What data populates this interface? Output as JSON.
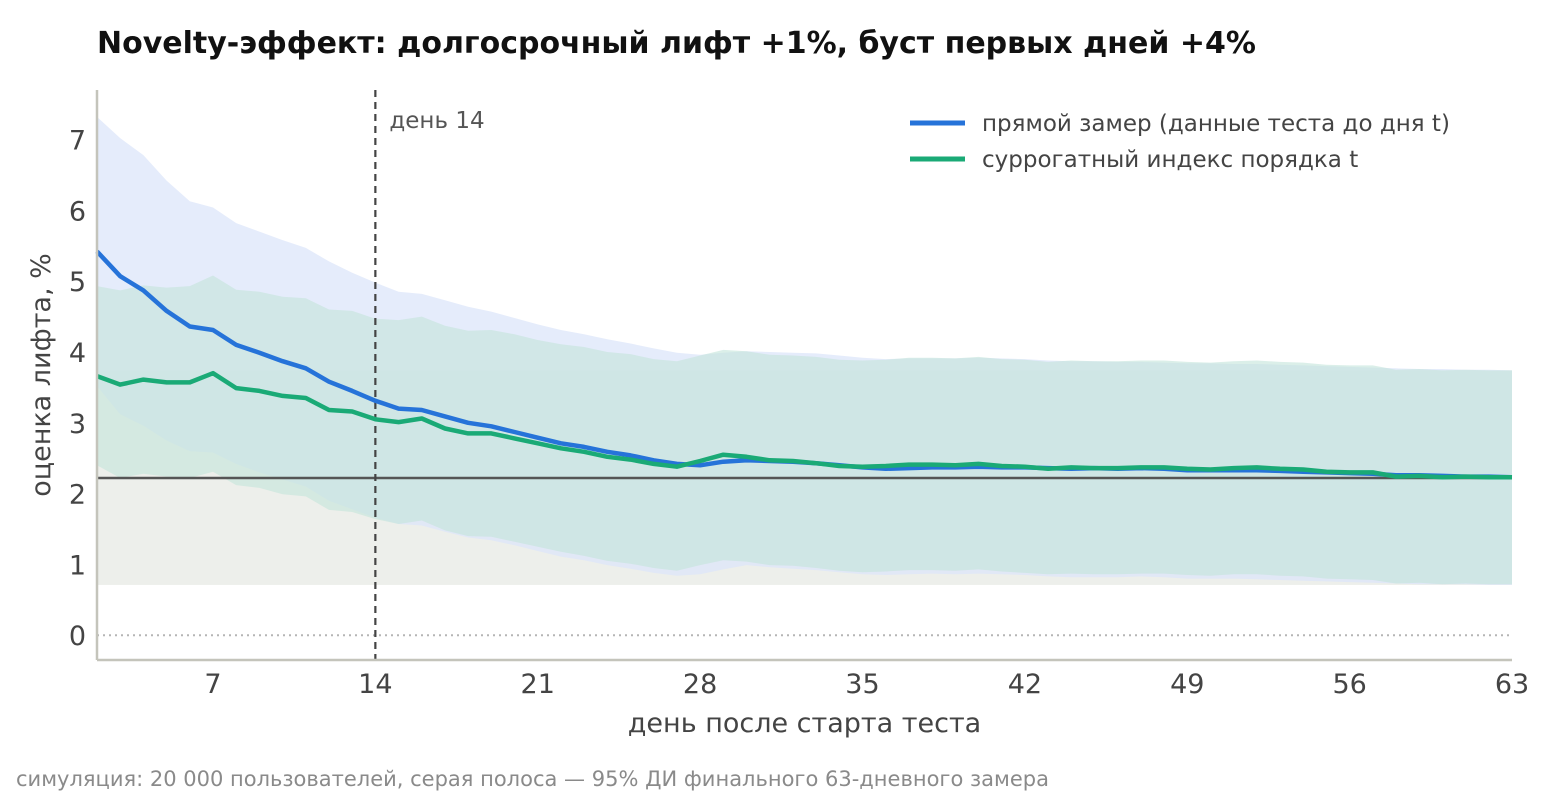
{
  "chart_data": {
    "type": "line",
    "title": "Novelty-эффект: долгосрочный лифт +1%, буст первых дней +4%",
    "xlabel": "день после старта теста",
    "ylabel": "оценка лифта, %",
    "caption": "симуляция: 20 000 пользователей, серая полоса — 95% ДИ финального 63-дневного замера",
    "xlim": [
      2,
      63
    ],
    "ylim": [
      -0.35,
      7.7
    ],
    "xticks": [
      "7",
      "14",
      "21",
      "28",
      "35",
      "42",
      "49",
      "56",
      "63"
    ],
    "xtick_values": [
      7,
      14,
      21,
      28,
      35,
      42,
      49,
      56,
      63
    ],
    "yticks": [
      "0",
      "1",
      "2",
      "3",
      "4",
      "5",
      "6",
      "7"
    ],
    "ytick_values": [
      0,
      1,
      2,
      3,
      4,
      5,
      6,
      7
    ],
    "grid": false,
    "legend_position": "top-right",
    "reference_line": {
      "value": 2.22,
      "color": "#555555"
    },
    "zero_line": {
      "value": 0,
      "style": "dotted"
    },
    "vline": {
      "x": 14,
      "label": "день 14",
      "style": "dashed"
    },
    "final_ci_band": {
      "low": 0.71,
      "high": 3.74,
      "color": "#b8bfb0"
    },
    "x": [
      2,
      3,
      4,
      5,
      6,
      7,
      8,
      9,
      10,
      11,
      12,
      13,
      14,
      15,
      16,
      17,
      18,
      19,
      20,
      21,
      22,
      23,
      24,
      25,
      26,
      27,
      28,
      29,
      30,
      31,
      32,
      33,
      34,
      35,
      36,
      37,
      38,
      39,
      40,
      41,
      42,
      43,
      44,
      45,
      46,
      47,
      48,
      49,
      50,
      51,
      52,
      53,
      54,
      55,
      56,
      57,
      58,
      59,
      60,
      61,
      62,
      63
    ],
    "series": [
      {
        "name": "прямой замер (данные теста до дня t)",
        "color": "#2673d9",
        "band_color": "#dce6fa",
        "values": [
          5.42,
          5.07,
          4.87,
          4.58,
          4.36,
          4.31,
          4.1,
          3.99,
          3.87,
          3.77,
          3.58,
          3.45,
          3.31,
          3.2,
          3.18,
          3.09,
          3.0,
          2.95,
          2.87,
          2.79,
          2.71,
          2.66,
          2.59,
          2.54,
          2.47,
          2.42,
          2.4,
          2.45,
          2.47,
          2.46,
          2.45,
          2.43,
          2.4,
          2.37,
          2.35,
          2.36,
          2.37,
          2.37,
          2.38,
          2.37,
          2.37,
          2.36,
          2.35,
          2.36,
          2.35,
          2.36,
          2.35,
          2.33,
          2.33,
          2.33,
          2.33,
          2.32,
          2.31,
          2.3,
          2.29,
          2.28,
          2.26,
          2.26,
          2.25,
          2.24,
          2.24,
          2.23
        ],
        "ci_low": [
          3.52,
          3.12,
          2.96,
          2.75,
          2.6,
          2.58,
          2.42,
          2.3,
          2.2,
          2.1,
          1.9,
          1.78,
          1.66,
          1.57,
          1.55,
          1.46,
          1.38,
          1.34,
          1.27,
          1.19,
          1.11,
          1.06,
          0.99,
          0.94,
          0.88,
          0.84,
          0.86,
          0.93,
          0.99,
          0.96,
          0.94,
          0.92,
          0.89,
          0.86,
          0.85,
          0.86,
          0.87,
          0.86,
          0.87,
          0.86,
          0.85,
          0.83,
          0.82,
          0.82,
          0.82,
          0.83,
          0.82,
          0.8,
          0.8,
          0.8,
          0.79,
          0.78,
          0.77,
          0.76,
          0.75,
          0.74,
          0.73,
          0.72,
          0.72,
          0.72,
          0.71,
          0.71
        ],
        "ci_high": [
          7.32,
          7.02,
          6.78,
          6.42,
          6.13,
          6.04,
          5.82,
          5.7,
          5.58,
          5.47,
          5.28,
          5.12,
          4.98,
          4.85,
          4.82,
          4.73,
          4.64,
          4.57,
          4.48,
          4.39,
          4.31,
          4.25,
          4.18,
          4.12,
          4.05,
          3.99,
          3.96,
          3.99,
          4.01,
          4.0,
          3.99,
          3.98,
          3.95,
          3.92,
          3.9,
          3.91,
          3.91,
          3.91,
          3.92,
          3.91,
          3.9,
          3.88,
          3.87,
          3.87,
          3.86,
          3.86,
          3.85,
          3.84,
          3.84,
          3.83,
          3.83,
          3.82,
          3.81,
          3.8,
          3.79,
          3.78,
          3.77,
          3.76,
          3.76,
          3.75,
          3.75,
          3.74
        ]
      },
      {
        "name": "суррогатный индекс порядка t",
        "color": "#1aaa76",
        "band_color": "#c3e4da",
        "values": [
          3.66,
          3.54,
          3.61,
          3.57,
          3.57,
          3.7,
          3.49,
          3.45,
          3.38,
          3.35,
          3.18,
          3.16,
          3.05,
          3.01,
          3.06,
          2.92,
          2.85,
          2.85,
          2.78,
          2.71,
          2.64,
          2.59,
          2.52,
          2.48,
          2.42,
          2.38,
          2.46,
          2.55,
          2.52,
          2.47,
          2.46,
          2.43,
          2.39,
          2.38,
          2.39,
          2.41,
          2.41,
          2.4,
          2.42,
          2.39,
          2.38,
          2.35,
          2.37,
          2.36,
          2.36,
          2.37,
          2.37,
          2.35,
          2.34,
          2.36,
          2.37,
          2.35,
          2.34,
          2.31,
          2.3,
          2.3,
          2.24,
          2.25,
          2.23,
          2.24,
          2.23,
          2.23
        ],
        "ci_low": [
          2.4,
          2.22,
          2.28,
          2.24,
          2.22,
          2.31,
          2.12,
          2.08,
          1.99,
          1.96,
          1.77,
          1.74,
          1.64,
          1.57,
          1.62,
          1.48,
          1.4,
          1.39,
          1.32,
          1.25,
          1.18,
          1.12,
          1.05,
          1.01,
          0.95,
          0.91,
          0.99,
          1.06,
          1.04,
          0.99,
          0.98,
          0.95,
          0.91,
          0.89,
          0.9,
          0.92,
          0.92,
          0.91,
          0.93,
          0.9,
          0.88,
          0.86,
          0.87,
          0.86,
          0.86,
          0.87,
          0.87,
          0.85,
          0.84,
          0.86,
          0.86,
          0.84,
          0.83,
          0.8,
          0.79,
          0.78,
          0.73,
          0.74,
          0.72,
          0.73,
          0.72,
          0.72
        ],
        "ci_high": [
          4.93,
          4.87,
          4.94,
          4.91,
          4.93,
          5.08,
          4.88,
          4.85,
          4.78,
          4.76,
          4.6,
          4.58,
          4.47,
          4.45,
          4.5,
          4.37,
          4.3,
          4.31,
          4.25,
          4.17,
          4.11,
          4.07,
          4.0,
          3.97,
          3.9,
          3.87,
          3.95,
          4.03,
          4.01,
          3.96,
          3.95,
          3.93,
          3.89,
          3.88,
          3.89,
          3.92,
          3.92,
          3.91,
          3.93,
          3.9,
          3.89,
          3.86,
          3.88,
          3.87,
          3.87,
          3.88,
          3.88,
          3.86,
          3.85,
          3.87,
          3.88,
          3.86,
          3.85,
          3.82,
          3.81,
          3.81,
          3.75,
          3.76,
          3.74,
          3.75,
          3.74,
          3.74
        ]
      }
    ]
  }
}
